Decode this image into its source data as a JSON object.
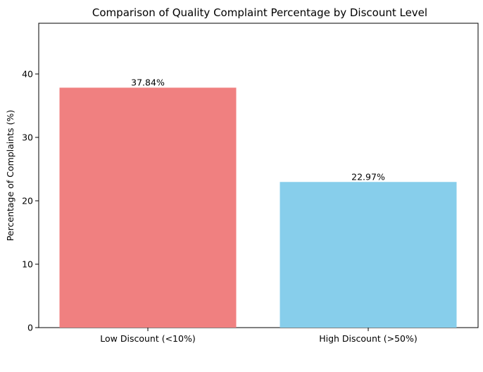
{
  "chart_data": {
    "type": "bar",
    "title": "Comparison of Quality Complaint Percentage by Discount Level",
    "xlabel": "",
    "ylabel": "Percentage of Complaints (%)",
    "categories": [
      "Low Discount (<10%)",
      "High Discount (>50%)"
    ],
    "values": [
      37.84,
      22.97
    ],
    "value_labels": [
      "37.84%",
      "22.97%"
    ],
    "colors": [
      "#f08080",
      "#87ceeb"
    ],
    "ylim": [
      0,
      48
    ],
    "yticks": [
      0,
      10,
      20,
      30,
      40
    ],
    "ytick_labels": [
      "0",
      "10",
      "20",
      "30",
      "40"
    ],
    "grid": false,
    "legend": "none"
  }
}
